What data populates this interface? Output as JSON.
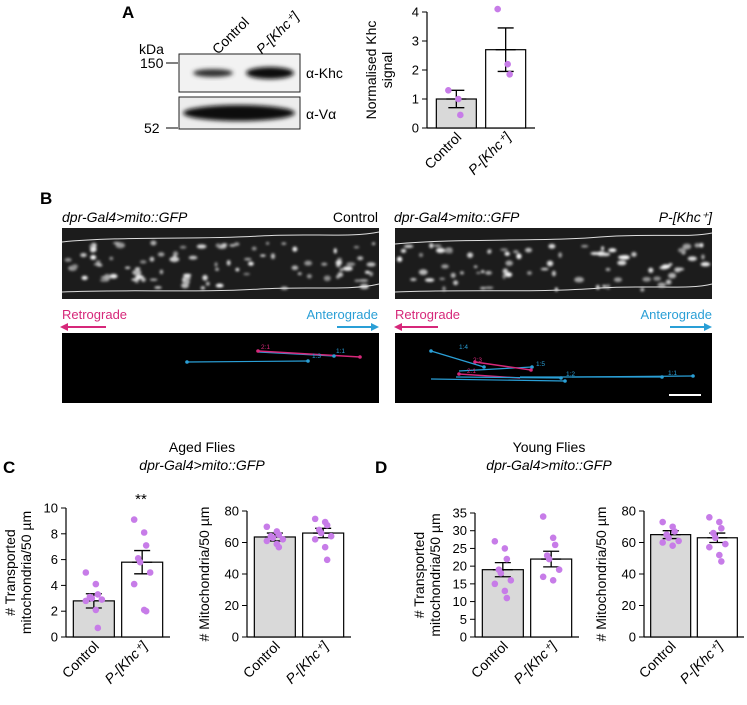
{
  "panels": {
    "A": "A",
    "B": "B",
    "C": "C",
    "D": "D"
  },
  "panelA": {
    "kda_label": "kDa",
    "marker_high": "150",
    "marker_low": "52",
    "lane_control": "Control",
    "lane_pkhc": "P-[Khc⁺]",
    "antibody_khc": "α-Khc",
    "antibody_va": "α-Vα"
  },
  "panelB": {
    "left_title": "dpr-Gal4>mito::GFP",
    "left_condition": "Control",
    "right_title": "dpr-Gal4>mito::GFP",
    "right_condition": "P-[Khc⁺]",
    "retrograde": "Retrograde",
    "anterograde": "Anterograde",
    "left_kymo_labels": [
      "2:1",
      "1:3",
      "1:1"
    ],
    "right_kymo_labels": [
      "1:4",
      "2:3",
      "1:5",
      "2:1",
      "1:2",
      "1:1"
    ]
  },
  "panelC": {
    "title": "Aged Flies",
    "subtitle": "dpr-Gal4>mito::GFP",
    "significance": "**"
  },
  "panelD": {
    "title": "Young Flies",
    "subtitle": "dpr-Gal4>mito::GFP"
  },
  "colors": {
    "control_bar": "#d9d9d9",
    "treat_bar": "#ffffff",
    "dots": "#c77ce8",
    "retrograde": "#d6287a",
    "anterograde": "#2a9fd6"
  },
  "chart_data": [
    {
      "id": "A",
      "type": "bar",
      "categories": [
        "Control",
        "P-[Khc⁺]"
      ],
      "values": [
        1.0,
        2.7
      ],
      "sem": [
        0.3,
        0.75
      ],
      "points": [
        [
          1.3,
          1.0,
          0.45
        ],
        [
          4.1,
          2.2,
          1.85
        ]
      ],
      "ylabel": "Normalised Khc signal",
      "ylim": [
        0,
        4
      ],
      "yticks": [
        0,
        1,
        2,
        3,
        4
      ]
    },
    {
      "id": "C-left",
      "type": "bar",
      "categories": [
        "Control",
        "P-[Khc⁺]"
      ],
      "values": [
        2.8,
        5.8
      ],
      "sem": [
        0.55,
        0.9
      ],
      "points": [
        [
          5.0,
          4.1,
          3.3,
          3.1,
          3.0,
          2.9,
          2.8,
          2.1,
          0.7
        ],
        [
          9.1,
          8.1,
          7.1,
          6.1,
          5.8,
          5.0,
          4.1,
          2.1,
          2.0
        ]
      ],
      "ylabel": "# Transported mitochondria/50 µm",
      "ylim": [
        0,
        10
      ],
      "yticks": [
        0,
        2,
        4,
        6,
        8,
        10
      ]
    },
    {
      "id": "C-right",
      "type": "bar",
      "categories": [
        "Control",
        "P-[Khc⁺]"
      ],
      "values": [
        63.5,
        66
      ],
      "sem": [
        2.5,
        3.0
      ],
      "points": [
        [
          70,
          67,
          65,
          64,
          63,
          62,
          61,
          59,
          57
        ],
        [
          75,
          73,
          71,
          68,
          66,
          64,
          62,
          57,
          49
        ]
      ],
      "ylabel": "# Mitochondria/50 µm",
      "ylim": [
        0,
        80
      ],
      "yticks": [
        0,
        20,
        40,
        60,
        80
      ]
    },
    {
      "id": "D-left",
      "type": "bar",
      "categories": [
        "Control",
        "P-[Khc⁺]"
      ],
      "values": [
        19,
        22
      ],
      "sem": [
        2.0,
        2.2
      ],
      "points": [
        [
          27,
          25,
          22,
          19,
          18,
          16,
          15,
          13,
          11
        ],
        [
          34,
          28,
          26,
          23,
          22,
          19,
          17,
          16
        ]
      ],
      "ylabel": "# Transported mitochondria/50 µm",
      "ylim": [
        0,
        35
      ],
      "yticks": [
        0,
        5,
        10,
        15,
        20,
        25,
        30,
        35
      ]
    },
    {
      "id": "D-right",
      "type": "bar",
      "categories": [
        "Control",
        "P-[Khc⁺]"
      ],
      "values": [
        65,
        63
      ],
      "sem": [
        2.5,
        3.0
      ],
      "points": [
        [
          73,
          70,
          67,
          65,
          63,
          61,
          60,
          58
        ],
        [
          76,
          73,
          69,
          66,
          63,
          59,
          57,
          52,
          48
        ]
      ],
      "ylabel": "# Mitochondria/50 µm",
      "ylim": [
        0,
        80
      ],
      "yticks": [
        0,
        20,
        40,
        60,
        80
      ]
    }
  ]
}
